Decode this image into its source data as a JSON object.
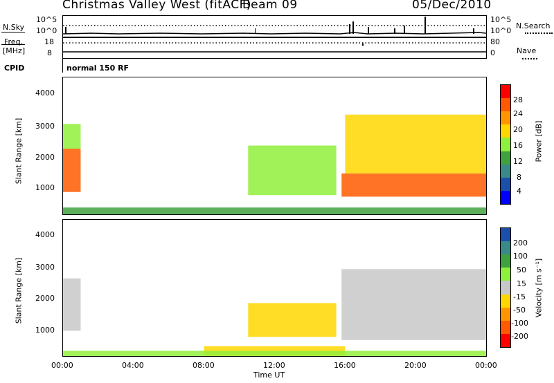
{
  "header": {
    "title": "Christmas Valley West (fitACF)",
    "beam": "Beam 09",
    "date": "05/Dec/2010"
  },
  "top_panels": {
    "nsky_label": "N.Sky",
    "nsky_ticks": [
      "10^5",
      "10^0"
    ],
    "nsearch_ticks": [
      "10^5",
      "10^0"
    ],
    "nsearch_label": "N.Search",
    "freq_label_1": "Freq.",
    "freq_label_2": "[MHz]",
    "freq_ticks": [
      "18",
      "8"
    ],
    "nave_ticks": [
      "80",
      "0"
    ],
    "nave_label": "Nave",
    "cpid_label": "CPID",
    "cpid_value": "normal 150 RF"
  },
  "chart_data": [
    {
      "type": "heatmap",
      "panel": "power",
      "ylabel": "Slant Range [km]",
      "y_ticks": [
        "4000",
        "3000",
        "2000",
        "1000"
      ],
      "ylim": [
        180,
        4600
      ],
      "xlim": [
        0,
        24
      ],
      "colorbar_label": "Power [dB]",
      "colorbar_ticks": [
        "28",
        "24",
        "20",
        "16",
        "12",
        "8",
        "4"
      ],
      "colorbar_colors": [
        "#ff0000",
        "#ff5a00",
        "#ff9600",
        "#ffd700",
        "#90ee3c",
        "#3fa23f",
        "#3a8a8a",
        "#1a4faa",
        "#0000ff"
      ],
      "regions": [
        {
          "t": [
            0.0,
            1.0
          ],
          "range": [
            900,
            2300
          ],
          "value": 24
        },
        {
          "t": [
            0.0,
            1.0
          ],
          "range": [
            2300,
            3100
          ],
          "value": 12
        },
        {
          "t": [
            10.5,
            15.5
          ],
          "range": [
            800,
            2400
          ],
          "value": 12
        },
        {
          "t": [
            15.8,
            24.0
          ],
          "range": [
            750,
            1500
          ],
          "value": 26
        },
        {
          "t": [
            16.0,
            24.0
          ],
          "range": [
            1500,
            3400
          ],
          "value": 18
        },
        {
          "t": [
            0.0,
            24.0
          ],
          "range": [
            180,
            400
          ],
          "value": 10
        }
      ]
    },
    {
      "type": "heatmap",
      "panel": "velocity",
      "ylabel": "Slant Range [km]",
      "y_ticks": [
        "4000",
        "3000",
        "2000",
        "1000"
      ],
      "ylim": [
        180,
        4600
      ],
      "xlim": [
        0,
        24
      ],
      "x_ticks": [
        "00:00",
        "04:00",
        "08:00",
        "12:00",
        "16:00",
        "20:00",
        "00:00"
      ],
      "xlabel": "Time UT",
      "colorbar_label": "Velocity [m s⁻¹]",
      "colorbar_ticks": [
        "200",
        "100",
        "50",
        "15",
        "-15",
        "-50",
        "-100",
        "-200"
      ],
      "colorbar_colors": [
        "#1a4faa",
        "#3a8a8a",
        "#3fa23f",
        "#90ee3c",
        "#c8c8c8",
        "#ffd700",
        "#ff9600",
        "#ff5a00",
        "#ff0000"
      ],
      "regions": [
        {
          "t": [
            0.0,
            1.0
          ],
          "range": [
            1000,
            2700
          ],
          "value": 0
        },
        {
          "t": [
            10.5,
            15.5
          ],
          "range": [
            800,
            1900
          ],
          "value": -30
        },
        {
          "t": [
            15.8,
            24.0
          ],
          "range": [
            700,
            3000
          ],
          "value": 0
        },
        {
          "t": [
            8.0,
            16.0
          ],
          "range": [
            180,
            500
          ],
          "value": -40
        },
        {
          "t": [
            0.0,
            24.0
          ],
          "range": [
            180,
            350
          ],
          "value": 30
        }
      ]
    }
  ]
}
